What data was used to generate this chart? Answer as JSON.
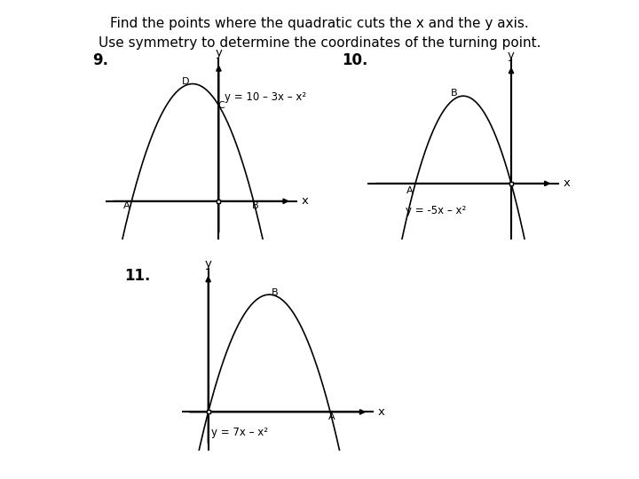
{
  "title_line1": "Find the points where the quadratic cuts the x and the y axis.",
  "title_line2": "Use symmetry to determine the coordinates of the turning point.",
  "bg_color": "#ffffff",
  "graph9": {
    "label": "9.",
    "equation": "y = 10 – 3x – x²",
    "eq_pos_x": 0.35,
    "eq_pos_y": 11.5,
    "point_labels": {
      "A": [
        -5,
        0,
        -0.3,
        -0.5
      ],
      "B": [
        2,
        0,
        0.1,
        -0.5
      ],
      "C": [
        0,
        10,
        0.15,
        0.0
      ],
      "D": [
        -1.5,
        12.25,
        -0.4,
        0.2
      ]
    },
    "x_range": [
      -6.5,
      4.5
    ],
    "y_range": [
      -4,
      15
    ],
    "x_axis_extent": [
      -6.2,
      4.2
    ],
    "y_axis_extent": [
      -3.5,
      14.5
    ]
  },
  "graph10": {
    "label": "10.",
    "equation": "y = -5x – x²",
    "eq_pos_x": -5.5,
    "eq_pos_y": -1.5,
    "point_labels": {
      "A": [
        -5,
        0,
        -0.3,
        -0.5
      ],
      "B": [
        -2.5,
        6.25,
        -0.5,
        0.2
      ]
    },
    "x_range": [
      -7.5,
      2.5
    ],
    "y_range": [
      -4,
      9
    ],
    "x_axis_extent": [
      -7.2,
      2.2
    ],
    "y_axis_extent": [
      -3.5,
      8.5
    ]
  },
  "graph11": {
    "label": "11.",
    "equation": "y = 7x – x²",
    "eq_pos_x": 0.15,
    "eq_pos_y": -1.5,
    "point_labels": {
      "A": [
        7,
        0,
        0.1,
        -0.5
      ],
      "B": [
        3.5,
        12.25,
        0.3,
        0.2
      ]
    },
    "x_range": [
      -1.5,
      9.5
    ],
    "y_range": [
      -4,
      15
    ],
    "x_axis_extent": [
      -1.2,
      9.2
    ],
    "y_axis_extent": [
      -3.5,
      14.5
    ]
  },
  "axis_color": "#000000",
  "curve_color": "#000000",
  "label_color": "#000000",
  "font_size_title": 11,
  "font_size_label": 11,
  "font_size_eq": 8.5,
  "font_size_point": 8
}
